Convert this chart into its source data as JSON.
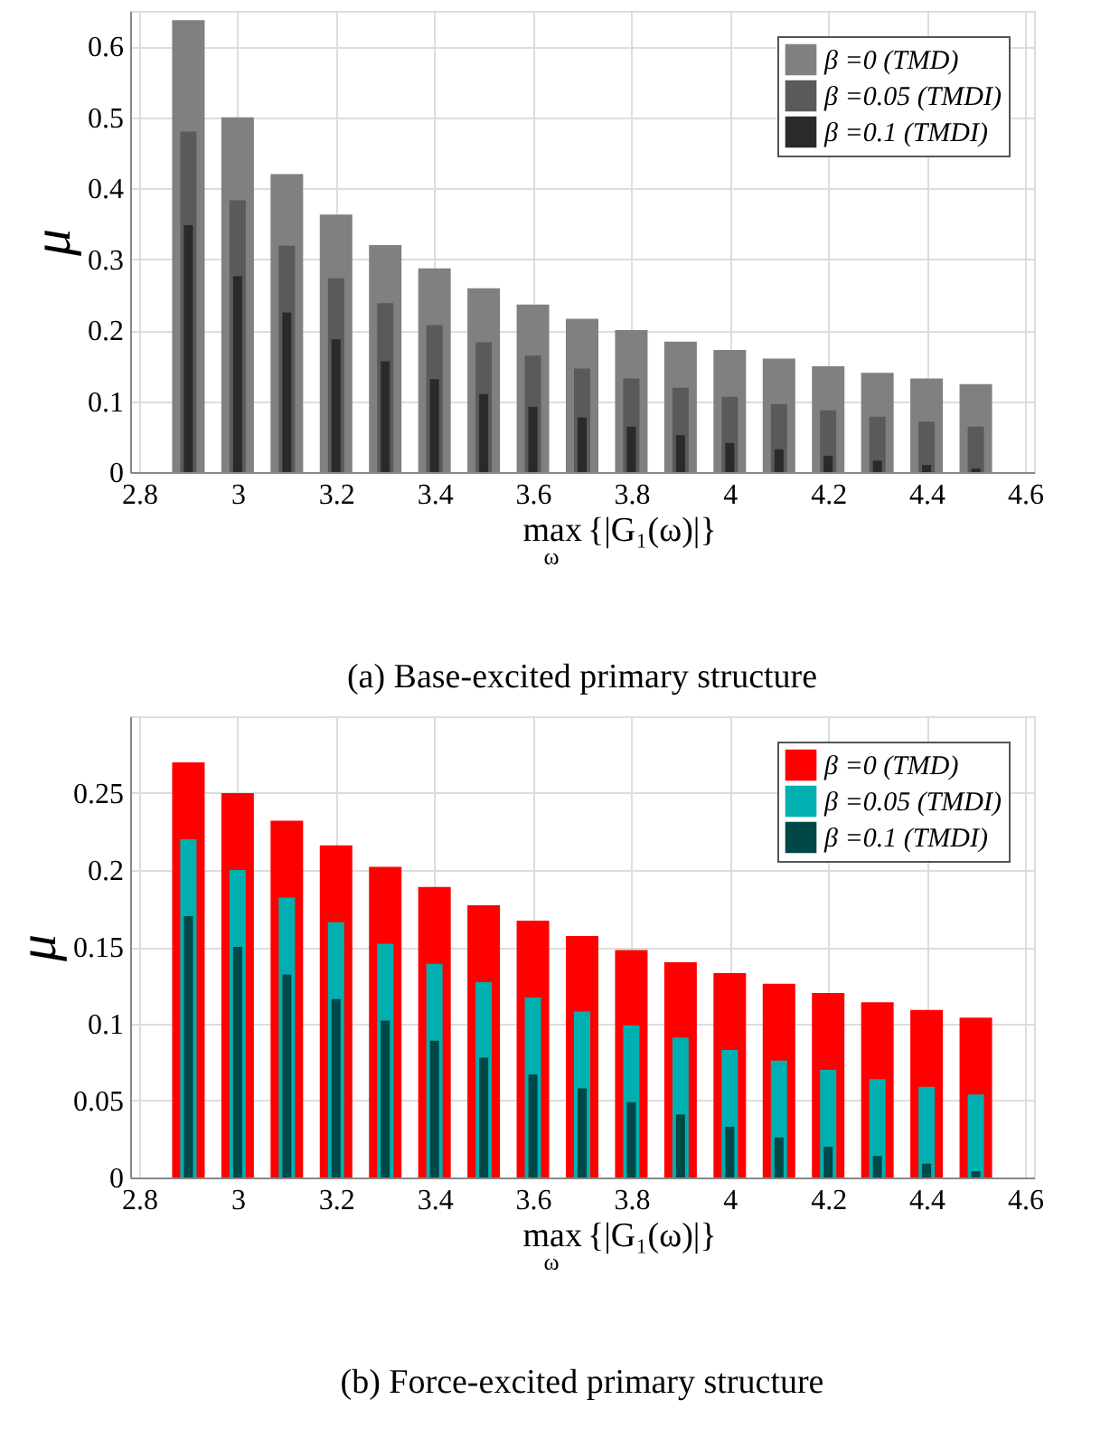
{
  "chart_data": [
    {
      "type": "bar",
      "title": "(a) Base-excited primary structure",
      "xlabel": "max$_{ω}${|G₁(ω)|}",
      "ylabel": "μ",
      "x": [
        2.9,
        3.0,
        3.1,
        3.2,
        3.3,
        3.4,
        3.5,
        3.6,
        3.7,
        3.8,
        3.9,
        4.0,
        4.1,
        4.2,
        4.3,
        4.4,
        4.5
      ],
      "series": [
        {
          "name": "β =0 (TMD)",
          "color": "#808080",
          "values": [
            0.637,
            0.5,
            0.42,
            0.363,
            0.32,
            0.287,
            0.259,
            0.236,
            0.216,
            0.2,
            0.184,
            0.172,
            0.16,
            0.149,
            0.14,
            0.132,
            0.124
          ]
        },
        {
          "name": "β =0.05 (TMDI)",
          "color": "#5a5a5a",
          "values": [
            0.48,
            0.383,
            0.319,
            0.273,
            0.238,
            0.207,
            0.183,
            0.164,
            0.146,
            0.132,
            0.119,
            0.106,
            0.096,
            0.087,
            0.078,
            0.071,
            0.064
          ]
        },
        {
          "name": "β =0.1 (TMDI)",
          "color": "#2a2a2a",
          "values": [
            0.348,
            0.276,
            0.225,
            0.187,
            0.156,
            0.131,
            0.11,
            0.092,
            0.077,
            0.064,
            0.052,
            0.041,
            0.032,
            0.023,
            0.016,
            0.01,
            0.005
          ]
        }
      ],
      "xlim": [
        2.8,
        4.6
      ],
      "xticks": [
        2.8,
        3,
        3.2,
        3.4,
        3.6,
        3.8,
        4,
        4.2,
        4.4,
        4.6
      ],
      "ylim": [
        0,
        0.65
      ],
      "yticks": [
        0,
        0.1,
        0.2,
        0.3,
        0.4,
        0.5,
        0.6
      ],
      "grid": true,
      "legend": "top right"
    },
    {
      "type": "bar",
      "title": "(b) Force-excited primary structure",
      "xlabel": "max$_{ω}${|G₁(ω)|}",
      "ylabel": "μ",
      "x": [
        2.9,
        3.0,
        3.1,
        3.2,
        3.3,
        3.4,
        3.5,
        3.6,
        3.7,
        3.8,
        3.9,
        4.0,
        4.1,
        4.2,
        4.3,
        4.4,
        4.5
      ],
      "series": [
        {
          "name": "β =0 (TMD)",
          "color": "#ff0000",
          "values": [
            0.27,
            0.25,
            0.232,
            0.216,
            0.202,
            0.189,
            0.177,
            0.167,
            0.157,
            0.148,
            0.14,
            0.133,
            0.126,
            0.12,
            0.114,
            0.109,
            0.104
          ]
        },
        {
          "name": "β =0.05 (TMDI)",
          "color": "#00b0b0",
          "values": [
            0.22,
            0.2,
            0.182,
            0.166,
            0.152,
            0.139,
            0.127,
            0.117,
            0.108,
            0.099,
            0.091,
            0.083,
            0.076,
            0.07,
            0.064,
            0.059,
            0.054
          ]
        },
        {
          "name": "β =0.1 (TMDI)",
          "color": "#004848",
          "values": [
            0.17,
            0.15,
            0.132,
            0.116,
            0.102,
            0.089,
            0.078,
            0.067,
            0.058,
            0.049,
            0.041,
            0.033,
            0.026,
            0.02,
            0.014,
            0.009,
            0.004
          ]
        }
      ],
      "xlim": [
        2.8,
        4.6
      ],
      "xticks": [
        2.8,
        3,
        3.2,
        3.4,
        3.6,
        3.8,
        4,
        4.2,
        4.4,
        4.6
      ],
      "ylim": [
        0,
        0.3
      ],
      "yticks": [
        0,
        0.05,
        0.1,
        0.15,
        0.2,
        0.25
      ],
      "grid": true,
      "legend": "top right"
    }
  ]
}
